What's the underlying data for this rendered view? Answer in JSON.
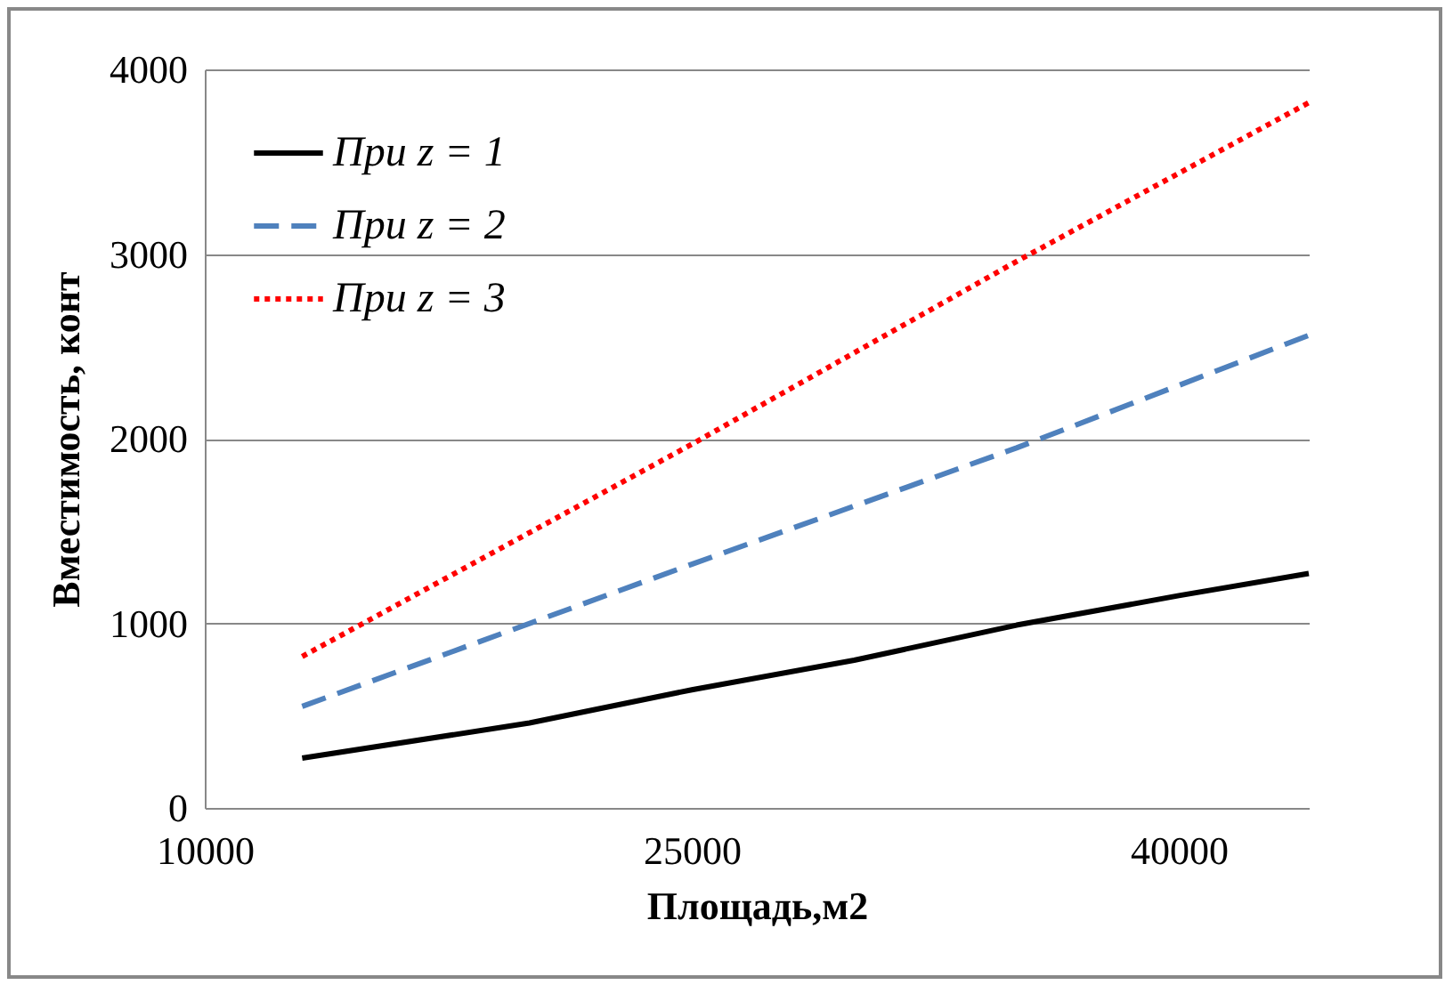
{
  "chart_data": {
    "type": "line",
    "xlabel": "Площадь,м2",
    "ylabel": "Вместимость, конт",
    "xlim": [
      10000,
      44000
    ],
    "xticks": [
      10000,
      25000,
      40000
    ],
    "ylim": [
      0,
      4000
    ],
    "yticks": [
      0,
      1000,
      2000,
      3000,
      4000
    ],
    "grid": "y",
    "legend": "top left",
    "marker": "none",
    "series": [
      {
        "name": "При z = 1",
        "color": "#000000",
        "line_style": "solid",
        "x": [
          13000,
          20000,
          25000,
          30000,
          35000,
          40000,
          44000
        ],
        "values": [
          270,
          460,
          640,
          800,
          990,
          1150,
          1270
        ]
      },
      {
        "name": "При z = 2",
        "color": "#4f81bd",
        "line_style": "dashed",
        "x": [
          13000,
          25000,
          35000,
          44000
        ],
        "values": [
          550,
          1320,
          1950,
          2560
        ]
      },
      {
        "name": "При z = 3",
        "color": "#ff0000",
        "line_style": "dotted",
        "x": [
          13000,
          25000,
          35000,
          44000
        ],
        "values": [
          820,
          1970,
          2960,
          3820
        ]
      }
    ]
  }
}
